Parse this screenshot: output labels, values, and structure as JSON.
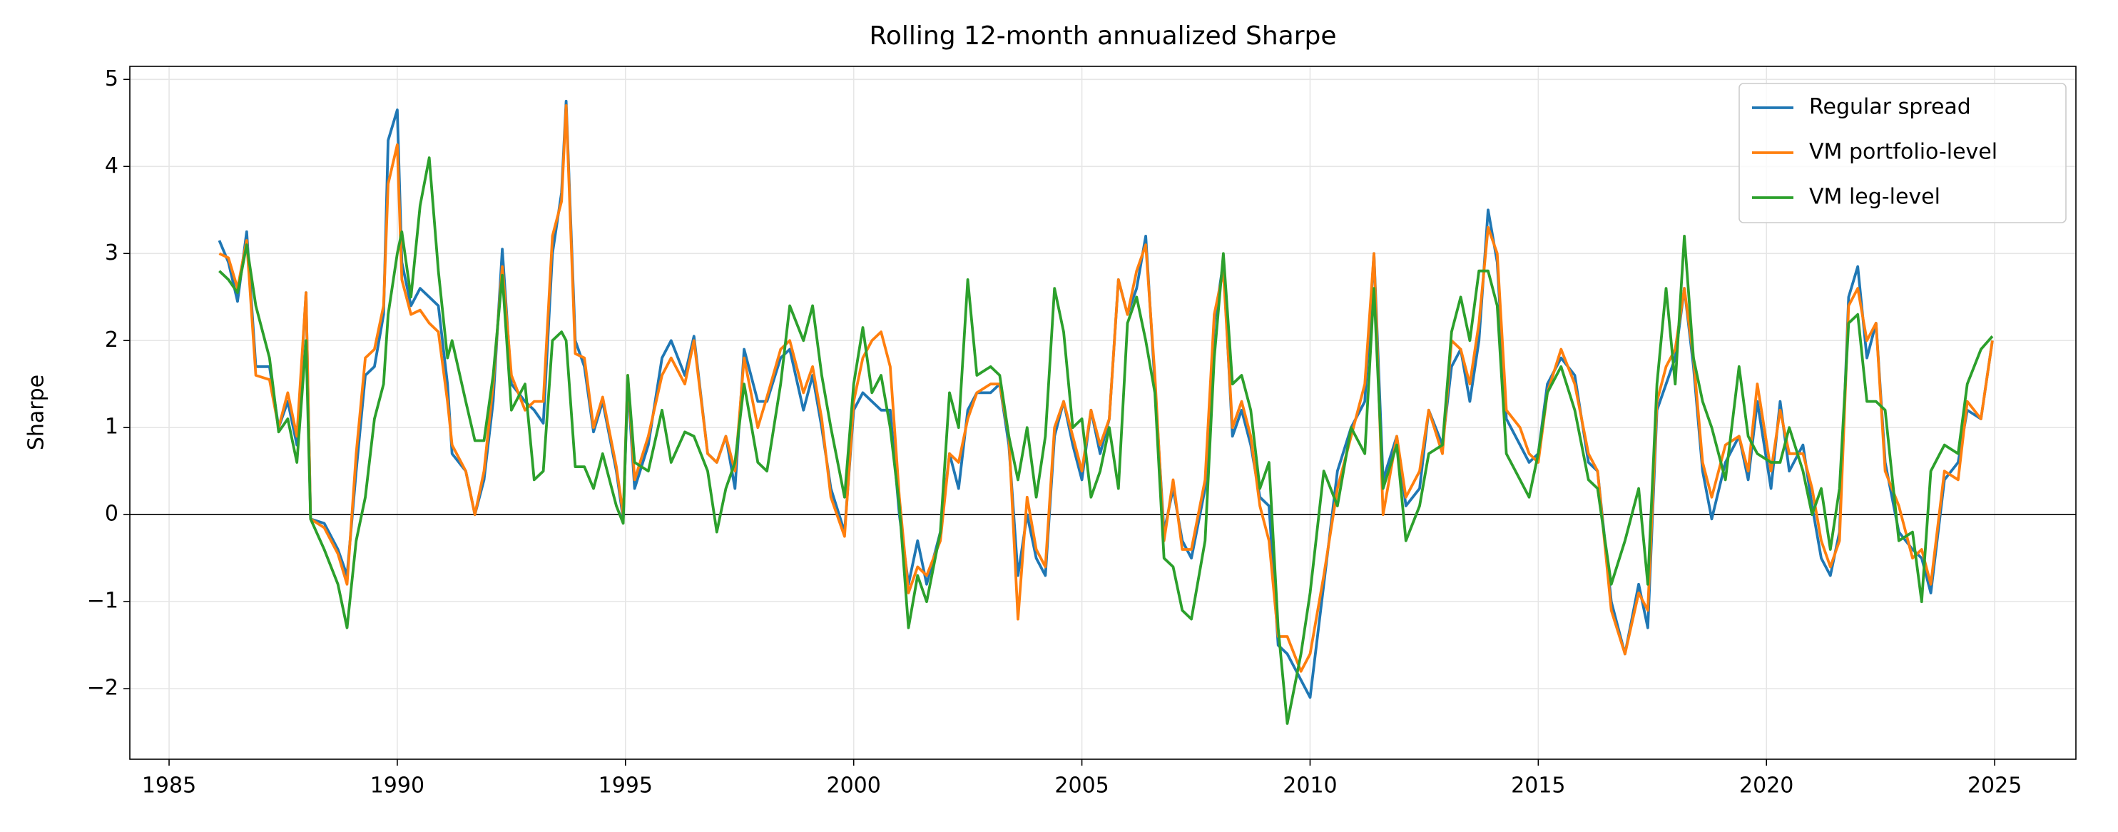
{
  "chart_data": {
    "type": "line",
    "title": "Rolling 12-month annualized Sharpe",
    "ylabel": "Sharpe",
    "x": [
      1986.1,
      1986.3,
      1986.5,
      1986.7,
      1986.9,
      1987.2,
      1987.4,
      1987.6,
      1987.8,
      1988.0,
      1988.1,
      1988.4,
      1988.7,
      1988.9,
      1989.1,
      1989.3,
      1989.5,
      1989.7,
      1989.8,
      1990.0,
      1990.1,
      1990.3,
      1990.5,
      1990.7,
      1990.9,
      1991.1,
      1991.2,
      1991.5,
      1991.7,
      1991.9,
      1992.1,
      1992.3,
      1992.5,
      1992.8,
      1993.0,
      1993.2,
      1993.4,
      1993.6,
      1993.7,
      1993.9,
      1994.1,
      1994.3,
      1994.5,
      1994.8,
      1994.95,
      1995.05,
      1995.2,
      1995.5,
      1995.8,
      1996.0,
      1996.3,
      1996.5,
      1996.8,
      1997.0,
      1997.2,
      1997.4,
      1997.6,
      1997.9,
      1998.1,
      1998.4,
      1998.6,
      1998.9,
      1999.1,
      1999.3,
      1999.5,
      1999.8,
      2000.0,
      2000.2,
      2000.4,
      2000.6,
      2000.8,
      2001.0,
      2001.2,
      2001.4,
      2001.6,
      2001.9,
      2002.1,
      2002.3,
      2002.5,
      2002.7,
      2003.0,
      2003.2,
      2003.4,
      2003.6,
      2003.8,
      2004.0,
      2004.2,
      2004.4,
      2004.6,
      2004.8,
      2005.0,
      2005.2,
      2005.4,
      2005.6,
      2005.8,
      2006.0,
      2006.2,
      2006.4,
      2006.6,
      2006.8,
      2007.0,
      2007.2,
      2007.4,
      2007.7,
      2007.9,
      2008.1,
      2008.3,
      2008.5,
      2008.7,
      2008.9,
      2009.1,
      2009.3,
      2009.5,
      2009.8,
      2010.0,
      2010.3,
      2010.6,
      2010.9,
      2011.2,
      2011.4,
      2011.6,
      2011.9,
      2012.1,
      2012.4,
      2012.6,
      2012.9,
      2013.1,
      2013.3,
      2013.5,
      2013.7,
      2013.9,
      2014.1,
      2014.3,
      2014.6,
      2014.8,
      2015.0,
      2015.2,
      2015.5,
      2015.8,
      2016.1,
      2016.3,
      2016.6,
      2016.9,
      2017.2,
      2017.4,
      2017.6,
      2017.8,
      2018.0,
      2018.2,
      2018.4,
      2018.6,
      2018.8,
      2019.1,
      2019.4,
      2019.6,
      2019.8,
      2020.1,
      2020.3,
      2020.5,
      2020.8,
      2021.0,
      2021.2,
      2021.4,
      2021.6,
      2021.8,
      2022.0,
      2022.2,
      2022.4,
      2022.6,
      2022.9,
      2023.2,
      2023.4,
      2023.6,
      2023.9,
      2024.2,
      2024.4,
      2024.7,
      2024.95
    ],
    "series": [
      {
        "name": "Regular spread",
        "color": "#1f77b4",
        "values": [
          3.15,
          2.9,
          2.45,
          3.25,
          1.7,
          1.7,
          1.0,
          1.3,
          0.8,
          2.55,
          -0.05,
          -0.1,
          -0.4,
          -0.7,
          0.5,
          1.6,
          1.7,
          2.3,
          4.3,
          4.65,
          2.9,
          2.4,
          2.6,
          2.5,
          2.4,
          1.5,
          0.7,
          0.5,
          0.0,
          0.4,
          1.3,
          3.05,
          1.5,
          1.3,
          1.2,
          1.05,
          3.0,
          3.7,
          4.75,
          2.0,
          1.7,
          0.95,
          1.3,
          0.5,
          -0.05,
          1.5,
          0.3,
          0.8,
          1.8,
          2.0,
          1.6,
          2.05,
          0.7,
          0.6,
          0.9,
          0.3,
          1.9,
          1.3,
          1.3,
          1.8,
          1.9,
          1.2,
          1.6,
          1.0,
          0.3,
          -0.2,
          1.2,
          1.4,
          1.3,
          1.2,
          1.2,
          0.0,
          -0.8,
          -0.3,
          -0.8,
          -0.2,
          0.7,
          0.3,
          1.2,
          1.4,
          1.4,
          1.5,
          0.8,
          -0.7,
          0.0,
          -0.5,
          -0.7,
          0.9,
          1.3,
          0.8,
          0.4,
          1.2,
          0.7,
          1.1,
          2.7,
          2.3,
          2.6,
          3.2,
          1.5,
          -0.2,
          0.3,
          -0.3,
          -0.5,
          0.3,
          2.2,
          2.9,
          0.9,
          1.2,
          0.8,
          0.2,
          0.1,
          -1.5,
          -1.6,
          -1.9,
          -2.1,
          -0.8,
          0.5,
          1.0,
          1.3,
          3.0,
          0.4,
          0.9,
          0.1,
          0.3,
          1.2,
          0.8,
          1.7,
          1.9,
          1.3,
          2.0,
          3.5,
          2.9,
          1.1,
          0.8,
          0.6,
          0.7,
          1.5,
          1.8,
          1.6,
          0.6,
          0.5,
          -1.0,
          -1.6,
          -0.8,
          -1.3,
          1.2,
          1.5,
          1.8,
          2.6,
          1.7,
          0.5,
          -0.05,
          0.6,
          0.9,
          0.4,
          1.3,
          0.3,
          1.3,
          0.5,
          0.8,
          0.1,
          -0.5,
          -0.7,
          -0.2,
          2.5,
          2.85,
          1.8,
          2.2,
          0.6,
          -0.2,
          -0.4,
          -0.5,
          -0.9,
          0.4,
          0.6,
          1.2,
          1.1,
          2.0
        ]
      },
      {
        "name": "VM portfolio-level",
        "color": "#ff7f0e",
        "values": [
          3.0,
          2.95,
          2.6,
          3.15,
          1.6,
          1.55,
          1.0,
          1.4,
          0.9,
          2.55,
          -0.05,
          -0.15,
          -0.45,
          -0.8,
          0.7,
          1.8,
          1.9,
          2.4,
          3.8,
          4.25,
          2.7,
          2.3,
          2.35,
          2.2,
          2.1,
          1.3,
          0.8,
          0.5,
          0.0,
          0.5,
          1.5,
          2.85,
          1.6,
          1.2,
          1.3,
          1.3,
          3.2,
          3.6,
          4.7,
          1.85,
          1.8,
          1.0,
          1.35,
          0.55,
          0.0,
          1.6,
          0.4,
          0.9,
          1.6,
          1.8,
          1.5,
          2.0,
          0.7,
          0.6,
          0.9,
          0.5,
          1.8,
          1.0,
          1.35,
          1.9,
          2.0,
          1.4,
          1.7,
          1.1,
          0.2,
          -0.25,
          1.3,
          1.8,
          2.0,
          2.1,
          1.7,
          0.2,
          -0.9,
          -0.6,
          -0.7,
          -0.3,
          0.7,
          0.6,
          1.1,
          1.4,
          1.5,
          1.5,
          0.9,
          -1.2,
          0.2,
          -0.4,
          -0.6,
          1.0,
          1.3,
          0.9,
          0.5,
          1.2,
          0.8,
          1.1,
          2.7,
          2.3,
          2.8,
          3.1,
          1.6,
          -0.3,
          0.4,
          -0.4,
          -0.4,
          0.4,
          2.3,
          2.8,
          1.0,
          1.3,
          0.9,
          0.1,
          -0.3,
          -1.4,
          -1.4,
          -1.8,
          -1.6,
          -0.7,
          0.3,
          0.9,
          1.5,
          3.0,
          0.0,
          0.9,
          0.2,
          0.5,
          1.2,
          0.7,
          2.0,
          1.9,
          1.5,
          2.2,
          3.3,
          3.0,
          1.2,
          1.0,
          0.7,
          0.6,
          1.4,
          1.9,
          1.5,
          0.7,
          0.5,
          -1.1,
          -1.6,
          -0.9,
          -1.1,
          1.3,
          1.7,
          1.9,
          2.6,
          1.8,
          0.6,
          0.2,
          0.8,
          0.9,
          0.5,
          1.5,
          0.5,
          1.2,
          0.7,
          0.7,
          0.3,
          -0.3,
          -0.6,
          -0.3,
          2.4,
          2.6,
          2.0,
          2.2,
          0.5,
          0.1,
          -0.5,
          -0.4,
          -0.8,
          0.5,
          0.4,
          1.3,
          1.1,
          2.0
        ]
      },
      {
        "name": "VM leg-level",
        "color": "#2ca02c",
        "values": [
          2.8,
          2.7,
          2.55,
          3.1,
          2.4,
          1.8,
          0.95,
          1.1,
          0.6,
          2.0,
          -0.05,
          -0.4,
          -0.8,
          -1.3,
          -0.3,
          0.2,
          1.1,
          1.5,
          2.3,
          3.0,
          3.25,
          2.5,
          3.55,
          4.1,
          2.8,
          1.8,
          2.0,
          1.3,
          0.85,
          0.85,
          1.6,
          2.75,
          1.2,
          1.5,
          0.4,
          0.5,
          2.0,
          2.1,
          2.0,
          0.55,
          0.55,
          0.3,
          0.7,
          0.1,
          -0.1,
          1.6,
          0.6,
          0.5,
          1.2,
          0.6,
          0.95,
          0.9,
          0.5,
          -0.2,
          0.3,
          0.6,
          1.5,
          0.6,
          0.5,
          1.5,
          2.4,
          2.0,
          2.4,
          1.6,
          1.0,
          0.2,
          1.5,
          2.15,
          1.4,
          1.6,
          1.0,
          0.1,
          -1.3,
          -0.7,
          -1.0,
          -0.2,
          1.4,
          1.0,
          2.7,
          1.6,
          1.7,
          1.6,
          0.9,
          0.4,
          1.0,
          0.2,
          0.9,
          2.6,
          2.1,
          1.0,
          1.1,
          0.2,
          0.5,
          1.0,
          0.3,
          2.2,
          2.5,
          2.0,
          1.4,
          -0.5,
          -0.6,
          -1.1,
          -1.2,
          -0.3,
          1.8,
          3.0,
          1.5,
          1.6,
          1.2,
          0.3,
          0.6,
          -1.3,
          -2.4,
          -1.6,
          -0.9,
          0.5,
          0.1,
          1.0,
          0.7,
          2.6,
          0.3,
          0.8,
          -0.3,
          0.1,
          0.7,
          0.8,
          2.1,
          2.5,
          2.0,
          2.8,
          2.8,
          2.4,
          0.7,
          0.4,
          0.2,
          0.7,
          1.4,
          1.7,
          1.2,
          0.4,
          0.3,
          -0.8,
          -0.3,
          0.3,
          -0.8,
          1.5,
          2.6,
          1.5,
          3.2,
          1.8,
          1.3,
          1.0,
          0.4,
          1.7,
          0.9,
          0.7,
          0.6,
          0.6,
          1.0,
          0.5,
          0.0,
          0.3,
          -0.4,
          0.3,
          2.2,
          2.3,
          1.3,
          1.3,
          1.2,
          -0.3,
          -0.2,
          -1.0,
          0.5,
          0.8,
          0.7,
          1.5,
          1.9,
          2.05
        ]
      }
    ],
    "hline": 0,
    "xlim": [
      1984.14,
      2026.78
    ],
    "ylim": [
      -2.81,
      5.15
    ],
    "xticks": [
      1985,
      1990,
      1995,
      2000,
      2005,
      2010,
      2015,
      2020,
      2025
    ],
    "yticks": [
      {
        "value": -2,
        "label": "−2"
      },
      {
        "value": -1,
        "label": "−1"
      },
      0,
      1,
      2,
      3,
      4,
      5
    ],
    "grid": true,
    "legend": "upper right"
  }
}
